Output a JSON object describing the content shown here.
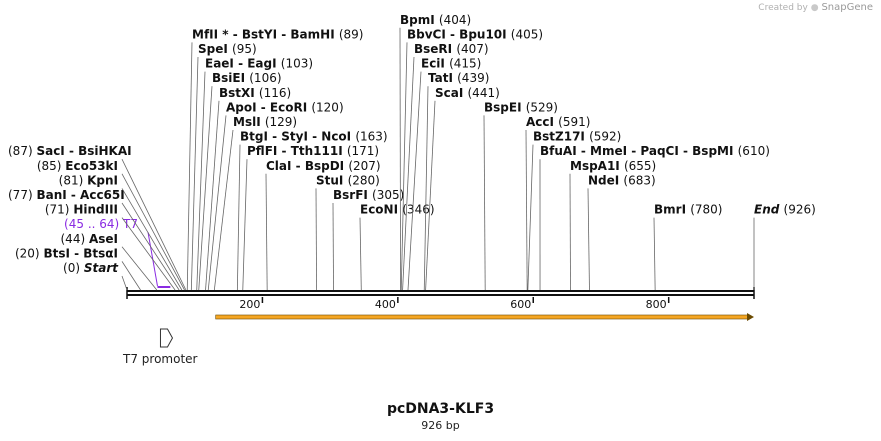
{
  "credit": {
    "prefix": "Created by",
    "brand": "SnapGene"
  },
  "plasmid": {
    "name": "pcDNA3-KLF3",
    "size_label": "926 bp",
    "length": 926
  },
  "colors": {
    "feature_purple": "#8a2be2",
    "orf_orange": "#f5a623",
    "line": "#555555",
    "text": "#111111"
  },
  "sites": [
    {
      "label": "Start",
      "pos_label": "(0)",
      "pos": 0,
      "side": "left",
      "row": 0,
      "italic": true
    },
    {
      "label": "BtsI - BtsαI",
      "pos_label": "(20)",
      "pos": 20,
      "side": "left",
      "row": 1
    },
    {
      "label": "AseI",
      "pos_label": "(44)",
      "pos": 44,
      "side": "left",
      "row": 2
    },
    {
      "label": "HindIII",
      "pos_label": "(71)",
      "pos": 71,
      "side": "left",
      "row": 4
    },
    {
      "label": "BanI - Acc65I",
      "pos_label": "(77)",
      "pos": 77,
      "side": "left",
      "row": 5
    },
    {
      "label": "KpnI",
      "pos_label": "(81)",
      "pos": 81,
      "side": "left",
      "row": 6
    },
    {
      "label": "Eco53kI",
      "pos_label": "(85)",
      "pos": 85,
      "side": "left",
      "row": 7
    },
    {
      "label": "SacI - BsiHKAI",
      "pos_label": "(87)",
      "pos": 87,
      "side": "left",
      "row": 8
    },
    {
      "label": "MfII * - BstYI - BamHI",
      "pos_label": "(89)",
      "pos": 89,
      "side": "right",
      "row": 16
    },
    {
      "label": "SpeI",
      "pos_label": "(95)",
      "pos": 95,
      "side": "right",
      "row": 15
    },
    {
      "label": "EaeI - EagI",
      "pos_label": "(103)",
      "pos": 103,
      "side": "right",
      "row": 14
    },
    {
      "label": "BsiEI",
      "pos_label": "(106)",
      "pos": 106,
      "side": "right",
      "row": 13
    },
    {
      "label": "BstXI",
      "pos_label": "(116)",
      "pos": 116,
      "side": "right",
      "row": 12
    },
    {
      "label": "ApoI - EcoRI",
      "pos_label": "(120)",
      "pos": 120,
      "side": "right",
      "row": 11
    },
    {
      "label": "MslI",
      "pos_label": "(129)",
      "pos": 129,
      "side": "right",
      "row": 10
    },
    {
      "label": "BtgI - StyI - NcoI",
      "pos_label": "(163)",
      "pos": 163,
      "side": "right",
      "row": 9
    },
    {
      "label": "PflFI - Tth111I",
      "pos_label": "(171)",
      "pos": 171,
      "side": "right",
      "row": 8
    },
    {
      "label": "ClaI - BspDI",
      "pos_label": "(207)",
      "pos": 207,
      "side": "right",
      "row": 7
    },
    {
      "label": "StuI",
      "pos_label": "(280)",
      "pos": 280,
      "side": "right",
      "row": 6
    },
    {
      "label": "BsrFI",
      "pos_label": "(305)",
      "pos": 305,
      "side": "right",
      "row": 5
    },
    {
      "label": "EcoNI",
      "pos_label": "(346)",
      "pos": 346,
      "side": "right",
      "row": 4
    },
    {
      "label": "BpmI",
      "pos_label": "(404)",
      "pos": 404,
      "side": "right",
      "row": 17
    },
    {
      "label": "BbvCI - Bpu10I",
      "pos_label": "(405)",
      "pos": 405,
      "side": "right",
      "row": 16
    },
    {
      "label": "BseRI",
      "pos_label": "(407)",
      "pos": 407,
      "side": "right",
      "row": 15
    },
    {
      "label": "EciI",
      "pos_label": "(415)",
      "pos": 415,
      "side": "right",
      "row": 14
    },
    {
      "label": "TatI",
      "pos_label": "(439)",
      "pos": 439,
      "side": "right",
      "row": 13
    },
    {
      "label": "ScaI",
      "pos_label": "(441)",
      "pos": 441,
      "side": "right",
      "row": 12
    },
    {
      "label": "BspEI",
      "pos_label": "(529)",
      "pos": 529,
      "side": "right",
      "row": 11
    },
    {
      "label": "AccI",
      "pos_label": "(591)",
      "pos": 591,
      "side": "right",
      "row": 10
    },
    {
      "label": "BstZ17I",
      "pos_label": "(592)",
      "pos": 592,
      "side": "right",
      "row": 9
    },
    {
      "label": "BfuAI - MmeI - PaqCI - BspMI",
      "pos_label": "(610)",
      "pos": 610,
      "side": "right",
      "row": 8
    },
    {
      "label": "MspA1I",
      "pos_label": "(655)",
      "pos": 655,
      "side": "right",
      "row": 7
    },
    {
      "label": "NdeI",
      "pos_label": "(683)",
      "pos": 683,
      "side": "right",
      "row": 6
    },
    {
      "label": "BmrI",
      "pos_label": "(780)",
      "pos": 780,
      "side": "right",
      "row": 4
    },
    {
      "label": "End",
      "pos_label": "(926)",
      "pos": 926,
      "side": "right",
      "row": 4,
      "italic": true
    }
  ],
  "features": {
    "t7_primer": {
      "range_label": "(45 .. 64)",
      "name": "T7",
      "start": 45,
      "end": 64
    },
    "t7_promoter": {
      "name": "T7 promoter",
      "start": 45,
      "end": 64
    },
    "orf": {
      "start": 131,
      "end": 926
    }
  },
  "ticks": [
    {
      "pos": 200,
      "label": "200"
    },
    {
      "pos": 400,
      "label": "400"
    },
    {
      "pos": 600,
      "label": "600"
    },
    {
      "pos": 800,
      "label": "800"
    }
  ]
}
